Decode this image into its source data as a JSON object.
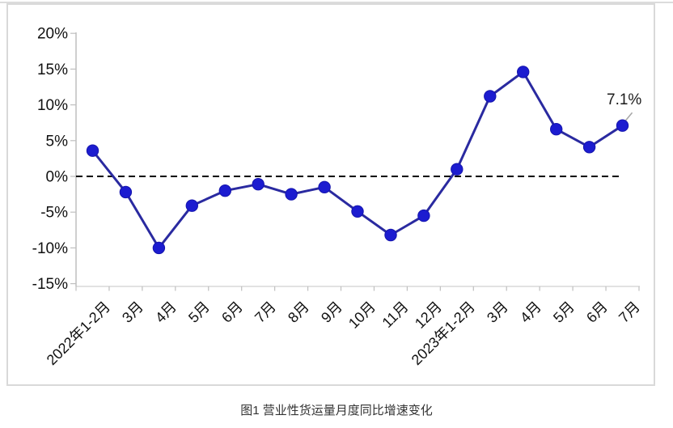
{
  "page": {
    "caption": "图1 营业性货运量月度同比增速变化"
  },
  "chart_data": {
    "type": "line",
    "title": "图1 营业性货运量月度同比增速变化",
    "categories": [
      "2022年1-2月",
      "3月",
      "4月",
      "5月",
      "6月",
      "7月",
      "8月",
      "9月",
      "10月",
      "11月",
      "12月",
      "2023年1-2月",
      "3月",
      "4月",
      "5月",
      "6月",
      "7月"
    ],
    "values": [
      3.6,
      -2.2,
      -10.0,
      -4.1,
      -2.0,
      -1.1,
      -2.5,
      -1.5,
      -4.9,
      -8.2,
      -5.5,
      1.0,
      11.2,
      14.6,
      6.6,
      4.1,
      7.1
    ],
    "y_ticks": [
      20,
      15,
      10,
      5,
      0,
      -5,
      -10,
      -15
    ],
    "y_tick_labels": [
      "20%",
      "15%",
      "10%",
      "5%",
      "0%",
      "-5%",
      "-10%",
      "-15%"
    ],
    "ylim": [
      -15,
      20
    ],
    "xlabel": "",
    "ylabel": "",
    "grid": false,
    "legend": "none",
    "x_tick_rotation_deg": 45,
    "zero_line_style": "dashed",
    "annotation": {
      "text": "7.1%",
      "point_index": 16
    },
    "colors": {
      "line": "#2A2AA0",
      "marker": "#1C1CD0",
      "marker_edge": "#1515AD",
      "zero_line": "#000000",
      "y_axis": "#BFBFBF",
      "x_axis": "#D9D9D9",
      "frame_border": "#D9D9D9",
      "leader_line": "#A6A6A6",
      "text": "#111111"
    }
  }
}
